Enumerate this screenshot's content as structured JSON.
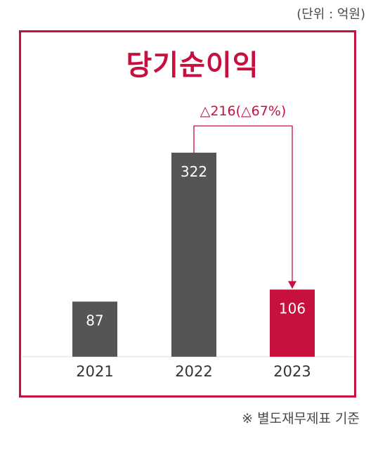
{
  "unit_label": "(단위 : 억원)",
  "title": "당기순이익",
  "footnote": "※ 별도재무제표 기준",
  "chart_data": {
    "type": "bar",
    "categories": [
      "2021",
      "2022",
      "2023"
    ],
    "values": [
      87,
      322,
      106
    ],
    "data_labels": [
      "87",
      "322",
      "106"
    ],
    "bar_colors": [
      "#555555",
      "#555555",
      "#c8103e"
    ],
    "title": "당기순이익",
    "unit": "억원",
    "annotation": {
      "text": "△216(△67%)",
      "from": "2022",
      "to": "2023"
    },
    "grid": false,
    "colors": {
      "accent": "#c8103e",
      "bar": "#555555"
    }
  }
}
